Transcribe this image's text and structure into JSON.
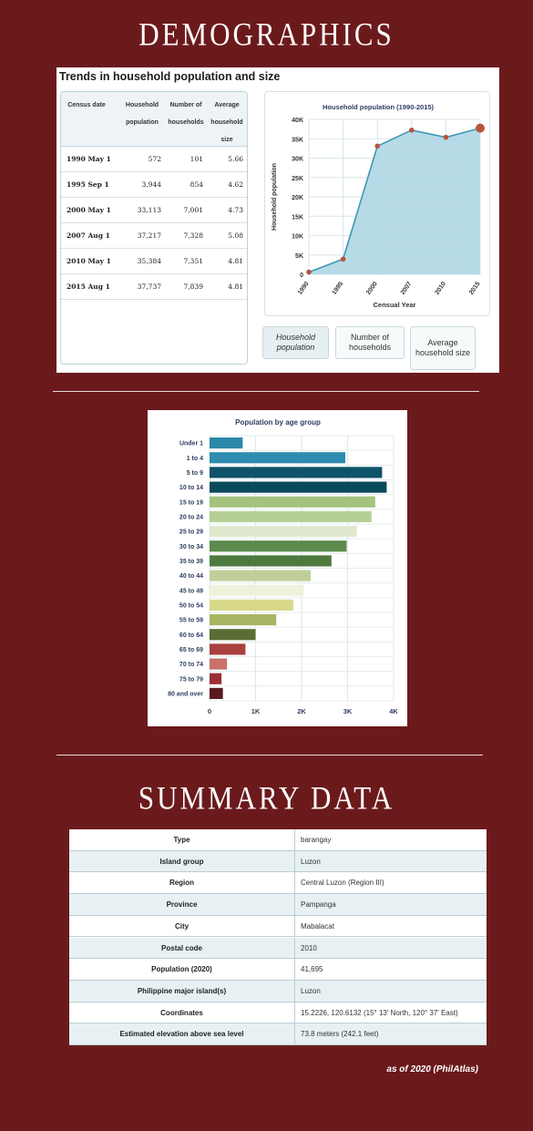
{
  "sections": {
    "demographics_title": "DEMOGRAPHICS",
    "summary_title": "SUMMARY DATA"
  },
  "trends": {
    "title": "Trends in household population and size",
    "table": {
      "headers": [
        "Census date",
        "Household population",
        "Number of households",
        "Average household size"
      ],
      "rows": [
        [
          "1990 May 1",
          "572",
          "101",
          "5.66"
        ],
        [
          "1995 Sep 1",
          "3,944",
          "854",
          "4.62"
        ],
        [
          "2000 May 1",
          "33,113",
          "7,001",
          "4.73"
        ],
        [
          "2007 Aug 1",
          "37,217",
          "7,328",
          "5.08"
        ],
        [
          "2010 May 1",
          "35,384",
          "7,351",
          "4.81"
        ],
        [
          "2015 Aug 1",
          "37,737",
          "7,839",
          "4.81"
        ]
      ]
    },
    "tabs": [
      "Household population",
      "Number of households",
      "Average household size"
    ],
    "active_tab": 0
  },
  "chart_data": [
    {
      "type": "area",
      "title": "Household population (1990-2015)",
      "xlabel": "Censual Year",
      "ylabel": "Household population",
      "x": [
        1990,
        1995,
        2000,
        2007,
        2010,
        2015
      ],
      "x_tick_labels": [
        "1990",
        "1995",
        "2000",
        "2007",
        "2010",
        "2015"
      ],
      "values": [
        572,
        3944,
        33113,
        37217,
        35384,
        37737
      ],
      "ylim": [
        0,
        40000
      ],
      "y_ticks": [
        0,
        5000,
        10000,
        15000,
        20000,
        25000,
        30000,
        35000,
        40000
      ],
      "y_tick_labels": [
        "0",
        "5K",
        "10K",
        "15K",
        "20K",
        "25K",
        "30K",
        "35K",
        "40K"
      ],
      "grid": true,
      "colors": {
        "fill": "#a9d5e3",
        "line": "#3d97b4",
        "point": "#b5553b"
      }
    },
    {
      "type": "bar",
      "orientation": "horizontal",
      "title": "Population by age group",
      "categories": [
        "Under 1",
        "1 to 4",
        "5 to 9",
        "10 to 14",
        "15 to 19",
        "20 to 24",
        "25 to 29",
        "30 to 34",
        "35 to 39",
        "40 to 44",
        "45 to 49",
        "50 to 54",
        "55 to 59",
        "60 to 64",
        "65 to 69",
        "70 to 74",
        "75 to 79",
        "80 and over"
      ],
      "values": [
        720,
        2950,
        3750,
        3850,
        3600,
        3520,
        3200,
        2980,
        2650,
        2200,
        2050,
        1820,
        1450,
        1000,
        780,
        380,
        260,
        290
      ],
      "xlim": [
        0,
        4000
      ],
      "x_ticks": [
        0,
        1000,
        2000,
        3000,
        4000
      ],
      "x_tick_labels": [
        "0",
        "1K",
        "2K",
        "3K",
        "4K"
      ],
      "grid": true,
      "colors": [
        "#2b87a8",
        "#2e8cb0",
        "#0e5368",
        "#0a4a5d",
        "#a3c37f",
        "#b5cf97",
        "#dfe8cc",
        "#5c8a4c",
        "#4e7a40",
        "#bfcf99",
        "#eef2dd",
        "#d8d88a",
        "#a7b663",
        "#5a6e34",
        "#a8403e",
        "#c9716a",
        "#9c2f36",
        "#5a1a1e"
      ]
    }
  ],
  "summary": {
    "rows": [
      [
        "Type",
        "barangay"
      ],
      [
        "Island group",
        "Luzon"
      ],
      [
        "Region",
        "Central Luzon (Region III)"
      ],
      [
        "Province",
        "Pampanga"
      ],
      [
        "City",
        "Mabalacat"
      ],
      [
        "Postal code",
        "2010"
      ],
      [
        "Population (2020)",
        "41,695"
      ],
      [
        "Philippine major island(s)",
        "Luzon"
      ],
      [
        "Coordinates",
        "15.2226, 120.6132 (15° 13′ North, 120° 37′ East)"
      ],
      [
        "Estimated elevation above sea level",
        "73.8 meters (242.1 feet)"
      ]
    ]
  },
  "footnote": "as of 2020 (PhilAtlas)"
}
